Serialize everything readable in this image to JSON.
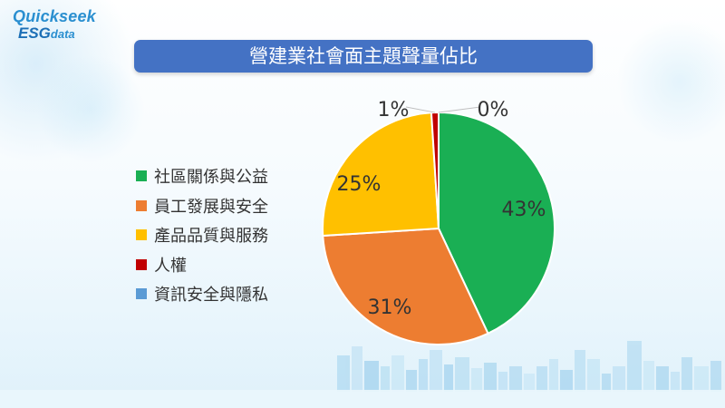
{
  "logo": {
    "line1": "Quickseek",
    "line2_brand": "ESG",
    "line2_suffix": "data"
  },
  "chart_data": {
    "type": "pie",
    "title": "營建業社會面主題聲量佔比",
    "categories": [
      "社區關係與公益",
      "員工發展與安全",
      "產品品質與服務",
      "人權",
      "資訊安全與隱私"
    ],
    "values": [
      43,
      31,
      25,
      1,
      0
    ],
    "labels": [
      "43%",
      "31%",
      "25%",
      "1%",
      "0%"
    ],
    "colors": [
      "#1aaf54",
      "#ed7d31",
      "#ffc000",
      "#c00000",
      "#5b9bd5"
    ],
    "legend_position": "left"
  }
}
